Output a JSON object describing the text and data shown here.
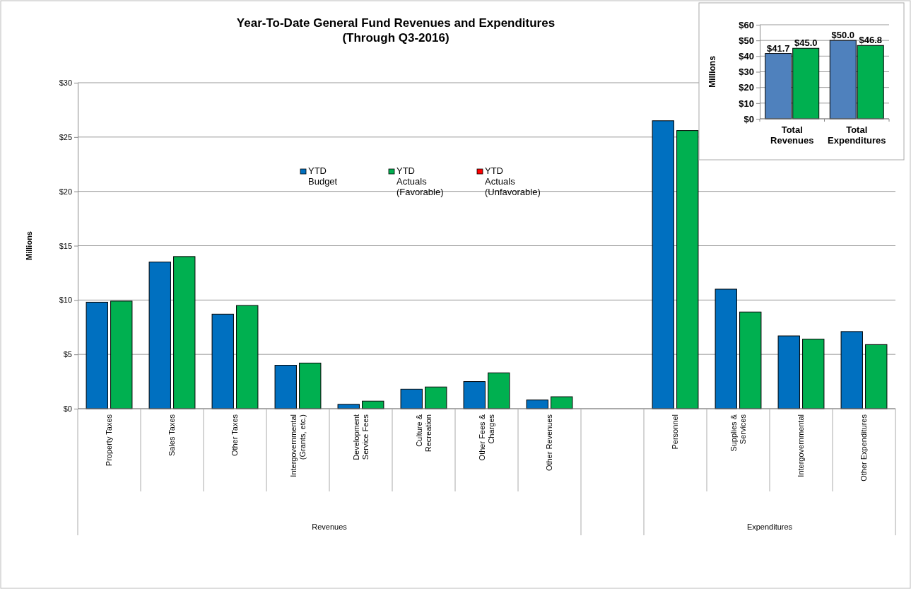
{
  "chart_data": [
    {
      "type": "bar",
      "title": "Year-To-Date General Fund Revenues and Expenditures",
      "subtitle": "(Through Q3-2016)",
      "ylabel": "Millions",
      "categories": [
        "Property Taxes",
        "Sales Taxes",
        "Other Taxes",
        "Intergovernmental (Grants, etc.)",
        "Development Service Fees",
        "Culture & Recreation",
        "Other Fees & Charges",
        "Other Revenues",
        null,
        "Personnel",
        "Supplies & Services",
        "Intergovernmental",
        "Other Expenditures"
      ],
      "series": [
        {
          "name": "YTD Budget",
          "color": "#0070c0",
          "values": [
            9.8,
            13.5,
            8.7,
            4.0,
            0.4,
            1.8,
            2.5,
            0.8,
            null,
            26.5,
            11.0,
            6.7,
            7.1
          ]
        },
        {
          "name": "YTD Actuals (Favorable)",
          "color": "#00b050",
          "values": [
            9.9,
            14.0,
            9.5,
            4.2,
            0.7,
            2.0,
            3.3,
            1.1,
            null,
            25.6,
            8.9,
            6.4,
            5.9
          ]
        },
        {
          "name": "YTD Actuals (Unfavorable)",
          "color": "#ff0000",
          "values": [
            null,
            null,
            null,
            null,
            null,
            null,
            null,
            null,
            null,
            null,
            null,
            null,
            null
          ]
        }
      ],
      "ylim": [
        0,
        30
      ],
      "yticks": [
        {
          "value": 0,
          "label": "$0"
        },
        {
          "value": 5,
          "label": "$5"
        },
        {
          "value": 10,
          "label": "$10"
        },
        {
          "value": 15,
          "label": "$15"
        },
        {
          "value": 20,
          "label": "$20"
        },
        {
          "value": 25,
          "label": "$25"
        },
        {
          "value": 30,
          "label": "$30"
        }
      ],
      "grid": "y",
      "legend": "top",
      "annotations": [
        "Revenues",
        "Expenditures"
      ]
    },
    {
      "type": "bar",
      "ylabel": "Millions",
      "categories": [
        "Total Revenues",
        "Total Expenditures"
      ],
      "series": [
        {
          "color": "#4f81bd",
          "values": [
            41.7,
            50.0
          ],
          "value_labels": [
            "$41.7",
            "$50.0"
          ]
        },
        {
          "color": "#00b050",
          "values": [
            45.0,
            46.8
          ],
          "value_labels": [
            "$45.0",
            "$46.8"
          ]
        }
      ],
      "ylim": [
        0,
        60
      ],
      "yticks": [
        {
          "value": 0,
          "label": "$0"
        },
        {
          "value": 10,
          "label": "$10"
        },
        {
          "value": 20,
          "label": "$20"
        },
        {
          "value": 30,
          "label": "$30"
        },
        {
          "value": 40,
          "label": "$40"
        },
        {
          "value": 50,
          "label": "$50"
        },
        {
          "value": 60,
          "label": "$60"
        }
      ],
      "grid": "y",
      "legend": false
    }
  ]
}
